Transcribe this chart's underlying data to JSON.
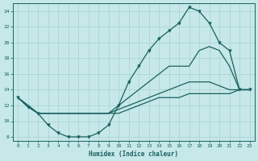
{
  "xlabel": "Humidex (Indice chaleur)",
  "bg_color": "#c6e8e8",
  "grid_color": "#a8d0d0",
  "line_color": "#1a6060",
  "xlim": [
    -0.5,
    23.5
  ],
  "ylim": [
    7.5,
    25.0
  ],
  "xticks": [
    0,
    1,
    2,
    3,
    4,
    5,
    6,
    7,
    8,
    9,
    10,
    11,
    12,
    13,
    14,
    15,
    16,
    17,
    18,
    19,
    20,
    21,
    22,
    23
  ],
  "yticks": [
    8,
    10,
    12,
    14,
    16,
    18,
    20,
    22,
    24
  ],
  "main_line": {
    "x": [
      0,
      1,
      2,
      3,
      4,
      5,
      6,
      7,
      8,
      9,
      10,
      11,
      12,
      13,
      14,
      15,
      16,
      17,
      18,
      19,
      20,
      21,
      22,
      23
    ],
    "y": [
      13,
      11.8,
      11,
      9.5,
      8.5,
      8,
      8,
      8,
      8.5,
      9.5,
      12,
      15,
      17,
      19,
      20.5,
      21.5,
      22.5,
      24.5,
      24,
      22.5,
      20,
      19,
      14,
      14
    ]
  },
  "line2": {
    "x": [
      0,
      2,
      9,
      10,
      11,
      12,
      13,
      14,
      15,
      16,
      17,
      18,
      19,
      20,
      21,
      22,
      23
    ],
    "y": [
      13,
      11,
      11,
      12,
      13,
      14,
      15,
      16,
      17,
      17,
      17,
      19,
      19.5,
      19,
      17,
      14,
      14
    ]
  },
  "line3": {
    "x": [
      0,
      2,
      9,
      10,
      11,
      12,
      13,
      14,
      15,
      16,
      17,
      18,
      19,
      20,
      21,
      22,
      23
    ],
    "y": [
      13,
      11,
      11,
      11.5,
      12,
      12.5,
      13,
      13.5,
      14,
      14.5,
      15,
      15,
      15,
      14.5,
      14,
      14,
      14
    ]
  },
  "line4": {
    "x": [
      0,
      2,
      9,
      10,
      11,
      12,
      13,
      14,
      15,
      16,
      17,
      18,
      19,
      20,
      21,
      22,
      23
    ],
    "y": [
      13,
      11,
      11,
      11,
      11.5,
      12,
      12.5,
      13,
      13,
      13,
      13.5,
      13.5,
      13.5,
      13.5,
      13.5,
      14,
      14
    ]
  },
  "marker_x": [
    0,
    1,
    2,
    3,
    4,
    5,
    6,
    7,
    8,
    9,
    10,
    11,
    12,
    13,
    14,
    15,
    16,
    17,
    18,
    19,
    20,
    21,
    22,
    23
  ],
  "marker_y": [
    13,
    11.8,
    11,
    9.5,
    8.5,
    8,
    8,
    8,
    8.5,
    9.5,
    12,
    15,
    17,
    19,
    20.5,
    21.5,
    22.5,
    24.5,
    24,
    22.5,
    20,
    19,
    14,
    14
  ]
}
